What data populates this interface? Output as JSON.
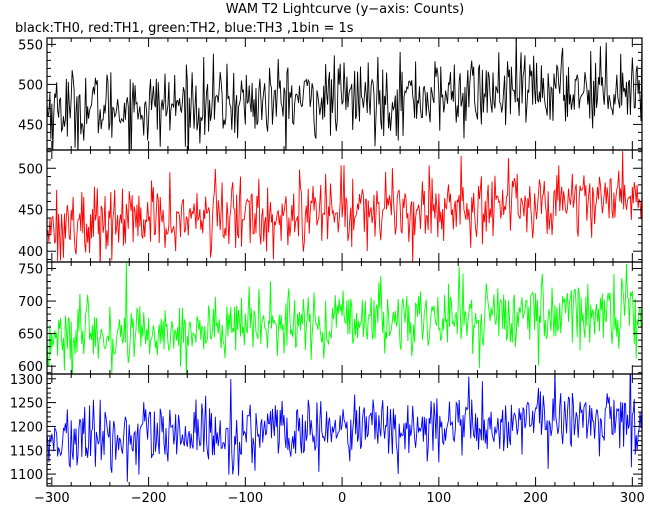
{
  "chart_data": {
    "type": "line",
    "title": "WAM T2 Lightcurve (y−axis: Counts)",
    "subtitle": "black:TH0, red:TH1, green:TH2, blue:TH3 ,1bin = 1s",
    "xlabel": "",
    "ylabel": "",
    "x_range": [
      -305,
      310
    ],
    "x_ticks": [
      -300,
      -200,
      -100,
      0,
      100,
      200,
      300
    ],
    "x_tick_labels": [
      "−300",
      "−200",
      "−100",
      "0",
      "100",
      "200",
      "300"
    ],
    "grid": false,
    "bin_seconds": 1,
    "panels": [
      {
        "name": "TH0",
        "color": "#000000",
        "ylim": [
          418,
          558
        ],
        "y_ticks": [
          450,
          500,
          550
        ],
        "trend": [
          [
            -305,
            470
          ],
          [
            -200,
            472
          ],
          [
            -100,
            478
          ],
          [
            0,
            483
          ],
          [
            100,
            486
          ],
          [
            200,
            492
          ],
          [
            310,
            500
          ]
        ],
        "noise_sd": 24
      },
      {
        "name": "TH1",
        "color": "#ff0000",
        "ylim": [
          387,
          522
        ],
        "y_ticks": [
          400,
          450,
          500
        ],
        "trend": [
          [
            -305,
            432
          ],
          [
            -200,
            437
          ],
          [
            -100,
            443
          ],
          [
            0,
            450
          ],
          [
            100,
            453
          ],
          [
            200,
            460
          ],
          [
            310,
            468
          ]
        ],
        "noise_sd": 22
      },
      {
        "name": "TH2",
        "color": "#00ff00",
        "ylim": [
          588,
          760
        ],
        "y_ticks": [
          600,
          650,
          700,
          750
        ],
        "trend": [
          [
            -305,
            640
          ],
          [
            -200,
            650
          ],
          [
            -100,
            660
          ],
          [
            0,
            668
          ],
          [
            100,
            674
          ],
          [
            200,
            680
          ],
          [
            310,
            686
          ]
        ],
        "noise_sd": 26
      },
      {
        "name": "TH3",
        "color": "#0000ff",
        "ylim": [
          1075,
          1310
        ],
        "y_ticks": [
          1100,
          1150,
          1200,
          1250,
          1300
        ],
        "trend": [
          [
            -305,
            1170
          ],
          [
            -200,
            1175
          ],
          [
            -100,
            1183
          ],
          [
            0,
            1192
          ],
          [
            100,
            1198
          ],
          [
            200,
            1210
          ],
          [
            310,
            1218
          ]
        ],
        "noise_sd": 35
      }
    ]
  }
}
